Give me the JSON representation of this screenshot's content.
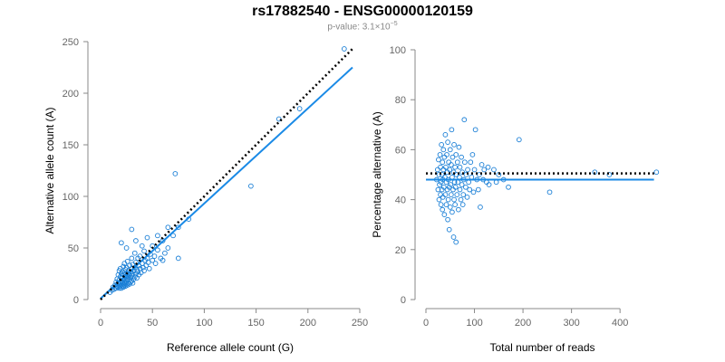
{
  "title": "rs17882540 - ENSG00000120159",
  "subtitle": {
    "prefix": "p-value: ",
    "mantissa": "3.1",
    "times": "×",
    "base": "10",
    "exponent": "−5"
  },
  "colors": {
    "points": "#1a7fd6",
    "fit": "#1a8ae6",
    "reference": "#000000",
    "axis": "#888888"
  },
  "chart_data": [
    {
      "type": "scatter",
      "title": "",
      "xlabel": "Reference allele count (G)",
      "ylabel": "Alternative allele count (A)",
      "xlim": [
        0,
        250
      ],
      "ylim": [
        0,
        250
      ],
      "xticks": [
        0,
        50,
        100,
        150,
        200,
        250
      ],
      "yticks": [
        0,
        50,
        100,
        150,
        200,
        250
      ],
      "grid": false,
      "points": [
        [
          9,
          7
        ],
        [
          11,
          9
        ],
        [
          12,
          12
        ],
        [
          13,
          10
        ],
        [
          14,
          14
        ],
        [
          15,
          11
        ],
        [
          15,
          17
        ],
        [
          16,
          13
        ],
        [
          16,
          20
        ],
        [
          17,
          12
        ],
        [
          17,
          16
        ],
        [
          17,
          24
        ],
        [
          18,
          11
        ],
        [
          18,
          15
        ],
        [
          18,
          19
        ],
        [
          18,
          28
        ],
        [
          19,
          13
        ],
        [
          19,
          17
        ],
        [
          19,
          22
        ],
        [
          19,
          30
        ],
        [
          20,
          11
        ],
        [
          20,
          14
        ],
        [
          20,
          18
        ],
        [
          20,
          25
        ],
        [
          21,
          13
        ],
        [
          21,
          16
        ],
        [
          21,
          21
        ],
        [
          21,
          27
        ],
        [
          22,
          12
        ],
        [
          22,
          15
        ],
        [
          22,
          19
        ],
        [
          22,
          24
        ],
        [
          22,
          32
        ],
        [
          23,
          14
        ],
        [
          23,
          17
        ],
        [
          23,
          20
        ],
        [
          23,
          26
        ],
        [
          23,
          35
        ],
        [
          24,
          13
        ],
        [
          24,
          16
        ],
        [
          24,
          22
        ],
        [
          24,
          29
        ],
        [
          25,
          15
        ],
        [
          25,
          18
        ],
        [
          25,
          23
        ],
        [
          25,
          31
        ],
        [
          26,
          14
        ],
        [
          26,
          20
        ],
        [
          26,
          25
        ],
        [
          26,
          37
        ],
        [
          27,
          16
        ],
        [
          27,
          22
        ],
        [
          27,
          28
        ],
        [
          28,
          15
        ],
        [
          28,
          19
        ],
        [
          28,
          24
        ],
        [
          28,
          33
        ],
        [
          29,
          17
        ],
        [
          29,
          21
        ],
        [
          29,
          27
        ],
        [
          30,
          18
        ],
        [
          30,
          23
        ],
        [
          30,
          30
        ],
        [
          30,
          40
        ],
        [
          31,
          16
        ],
        [
          31,
          25
        ],
        [
          31,
          34
        ],
        [
          32,
          20
        ],
        [
          32,
          28
        ],
        [
          33,
          22
        ],
        [
          33,
          31
        ],
        [
          33,
          45
        ],
        [
          34,
          25
        ],
        [
          34,
          36
        ],
        [
          35,
          21
        ],
        [
          35,
          29
        ],
        [
          36,
          27
        ],
        [
          36,
          40
        ],
        [
          37,
          24
        ],
        [
          37,
          33
        ],
        [
          38,
          30
        ],
        [
          38,
          42
        ],
        [
          39,
          26
        ],
        [
          40,
          35
        ],
        [
          41,
          31
        ],
        [
          42,
          28
        ],
        [
          42,
          47
        ],
        [
          43,
          38
        ],
        [
          44,
          33
        ],
        [
          45,
          40
        ],
        [
          46,
          36
        ],
        [
          47,
          30
        ],
        [
          48,
          44
        ],
        [
          50,
          38
        ],
        [
          52,
          42
        ],
        [
          53,
          35
        ],
        [
          55,
          48
        ],
        [
          58,
          40
        ],
        [
          60,
          38
        ],
        [
          62,
          45
        ],
        [
          20,
          55
        ],
        [
          25,
          50
        ],
        [
          30,
          68
        ],
        [
          34,
          57
        ],
        [
          40,
          52
        ],
        [
          45,
          60
        ],
        [
          50,
          52
        ],
        [
          55,
          62
        ],
        [
          60,
          57
        ],
        [
          65,
          50
        ],
        [
          65,
          70
        ],
        [
          70,
          62
        ],
        [
          72,
          122
        ],
        [
          75,
          70
        ],
        [
          75,
          40
        ],
        [
          85,
          78
        ],
        [
          145,
          110
        ],
        [
          172,
          175
        ],
        [
          192,
          185
        ],
        [
          235,
          243
        ]
      ],
      "fit_line": [
        [
          0,
          1
        ],
        [
          243,
          225
        ]
      ],
      "reference_line": [
        [
          0,
          0
        ],
        [
          243,
          243
        ]
      ],
      "series": [
        {
          "values": "points"
        }
      ]
    },
    {
      "type": "scatter",
      "title": "",
      "xlabel": "Total number of reads",
      "ylabel": "Percentage alternative (A)",
      "xlim": [
        0,
        480
      ],
      "ylim": [
        0,
        100
      ],
      "xticks": [
        0,
        100,
        200,
        300,
        400
      ],
      "yticks": [
        0,
        20,
        40,
        60,
        80,
        100
      ],
      "grid": false,
      "points": [
        [
          22,
          48
        ],
        [
          24,
          52
        ],
        [
          25,
          44
        ],
        [
          26,
          56
        ],
        [
          27,
          40
        ],
        [
          27,
          50
        ],
        [
          28,
          46
        ],
        [
          29,
          58
        ],
        [
          30,
          42
        ],
        [
          30,
          53
        ],
        [
          31,
          38
        ],
        [
          31,
          47
        ],
        [
          32,
          62
        ],
        [
          33,
          50
        ],
        [
          33,
          44
        ],
        [
          34,
          36
        ],
        [
          34,
          55
        ],
        [
          35,
          48
        ],
        [
          35,
          41
        ],
        [
          36,
          60
        ],
        [
          36,
          52
        ],
        [
          37,
          45
        ],
        [
          38,
          34
        ],
        [
          38,
          57
        ],
        [
          39,
          49
        ],
        [
          40,
          42
        ],
        [
          40,
          66
        ],
        [
          41,
          53
        ],
        [
          42,
          38
        ],
        [
          42,
          47
        ],
        [
          43,
          58
        ],
        [
          44,
          44
        ],
        [
          44,
          51
        ],
        [
          45,
          32
        ],
        [
          45,
          63
        ],
        [
          46,
          48
        ],
        [
          46,
          40
        ],
        [
          47,
          55
        ],
        [
          48,
          45
        ],
        [
          48,
          28
        ],
        [
          49,
          52
        ],
        [
          50,
          37
        ],
        [
          50,
          60
        ],
        [
          51,
          46
        ],
        [
          52,
          54
        ],
        [
          52,
          42
        ],
        [
          53,
          68
        ],
        [
          54,
          49
        ],
        [
          54,
          35
        ],
        [
          55,
          57
        ],
        [
          56,
          44
        ],
        [
          57,
          51
        ],
        [
          57,
          25
        ],
        [
          58,
          40
        ],
        [
          58,
          62
        ],
        [
          59,
          47
        ],
        [
          60,
          53
        ],
        [
          60,
          38
        ],
        [
          61,
          45
        ],
        [
          62,
          58
        ],
        [
          62,
          23
        ],
        [
          63,
          50
        ],
        [
          64,
          42
        ],
        [
          65,
          55
        ],
        [
          66,
          47
        ],
        [
          67,
          36
        ],
        [
          68,
          61
        ],
        [
          69,
          49
        ],
        [
          70,
          44
        ],
        [
          70,
          53
        ],
        [
          72,
          40
        ],
        [
          73,
          57
        ],
        [
          74,
          46
        ],
        [
          75,
          51
        ],
        [
          76,
          38
        ],
        [
          77,
          42
        ],
        [
          78,
          48
        ],
        [
          79,
          72
        ],
        [
          80,
          55
        ],
        [
          82,
          45
        ],
        [
          83,
          50
        ],
        [
          85,
          41
        ],
        [
          86,
          52
        ],
        [
          88,
          47
        ],
        [
          90,
          44
        ],
        [
          92,
          55
        ],
        [
          94,
          49
        ],
        [
          96,
          58
        ],
        [
          98,
          43
        ],
        [
          100,
          52
        ],
        [
          102,
          68
        ],
        [
          105,
          48
        ],
        [
          108,
          44
        ],
        [
          110,
          50
        ],
        [
          112,
          37
        ],
        [
          115,
          54
        ],
        [
          118,
          48
        ],
        [
          120,
          52
        ],
        [
          125,
          47
        ],
        [
          128,
          53
        ],
        [
          130,
          46
        ],
        [
          140,
          52
        ],
        [
          145,
          47
        ],
        [
          150,
          50
        ],
        [
          160,
          48
        ],
        [
          170,
          45
        ],
        [
          192,
          64
        ],
        [
          255,
          43
        ],
        [
          348,
          51
        ],
        [
          378,
          50
        ],
        [
          475,
          51
        ]
      ],
      "fit_line": [
        [
          0,
          48
        ],
        [
          470,
          48
        ]
      ],
      "reference_line": [
        [
          0,
          50.5
        ],
        [
          470,
          50.5
        ]
      ],
      "series": [
        {
          "values": "points"
        }
      ]
    }
  ]
}
